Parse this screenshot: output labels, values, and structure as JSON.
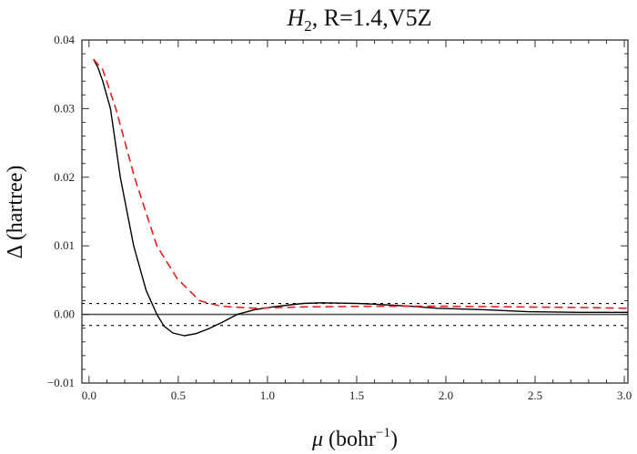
{
  "chart_data": {
    "type": "line",
    "title_italic": "H",
    "title_sub": "2",
    "title_rest": ", R=1.4,V5Z",
    "xlabel_symbol": "μ",
    "xlabel_unit": " (bohr",
    "xlabel_sup": "−1",
    "xlabel_close": ")",
    "ylabel": "Δ (hartree)",
    "xlim": [
      -0.04,
      3.02
    ],
    "ylim": [
      -0.01,
      0.04
    ],
    "xticks": [
      0.0,
      0.5,
      1.0,
      1.5,
      2.0,
      2.5,
      3.0
    ],
    "xtick_labels": [
      "0.0",
      "0.5",
      "1.0",
      "1.5",
      "2.0",
      "2.5",
      "3.0"
    ],
    "yticks": [
      0.04,
      0.03,
      0.02,
      0.01,
      0.0,
      -0.01
    ],
    "ytick_labels": [
      "0.04",
      "0.03",
      "0.02",
      "0.01",
      "0.00",
      "−0.01"
    ],
    "grid": false,
    "reference_lines": [
      {
        "y": 0.0,
        "style": "solid",
        "color": "#555555"
      },
      {
        "y": 0.0016,
        "style": "dotted",
        "color": "#000000"
      },
      {
        "y": -0.0016,
        "style": "dotted",
        "color": "#000000"
      }
    ],
    "series": [
      {
        "style": "solid",
        "color": "#000000",
        "x": [
          0.025,
          0.05,
          0.077,
          0.12,
          0.175,
          0.25,
          0.32,
          0.38,
          0.42,
          0.47,
          0.535,
          0.6,
          0.67,
          0.75,
          0.83,
          0.93,
          1.03,
          1.13,
          1.2,
          1.3,
          1.5,
          1.6,
          1.8,
          1.95,
          2.2,
          2.46,
          2.75,
          3.02
        ],
        "y": [
          0.0372,
          0.036,
          0.034,
          0.03,
          0.02,
          0.01,
          0.0035,
          0.0,
          -0.0017,
          -0.0027,
          -0.0031,
          -0.0028,
          -0.0021,
          -0.0011,
          0.0,
          0.0007,
          0.0011,
          0.0014,
          0.0016,
          0.0017,
          0.0016,
          0.0015,
          0.0012,
          0.0009,
          0.0007,
          0.0004,
          0.0003,
          0.0003
        ]
      },
      {
        "style": "dashed",
        "color": "#e02020",
        "x": [
          0.025,
          0.077,
          0.15,
          0.255,
          0.38,
          0.495,
          0.62,
          0.74,
          0.93,
          1.2,
          1.6,
          2.0,
          2.4,
          2.8,
          3.02
        ],
        "y": [
          0.0372,
          0.0357,
          0.03,
          0.02,
          0.01,
          0.0052,
          0.002,
          0.0012,
          0.0009,
          0.0011,
          0.0012,
          0.0012,
          0.0011,
          0.001,
          0.0009
        ]
      }
    ]
  }
}
